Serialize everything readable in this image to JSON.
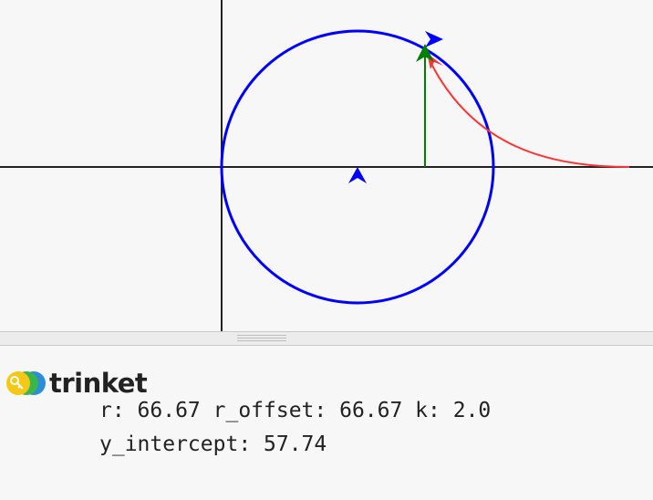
{
  "output": {
    "lines": [
      "r: 66.67 r_offset: 66.67 k: 2.0",
      "y_intercept: 57.74"
    ]
  },
  "brand": {
    "name": "trinket",
    "logo_icon": "trinket-key-logo-icon"
  },
  "colors": {
    "circle": "#0000ff",
    "curve": "#ff3333",
    "vertical_line": "#008000",
    "axes": "#000000",
    "background": "#f7f7f7"
  }
}
